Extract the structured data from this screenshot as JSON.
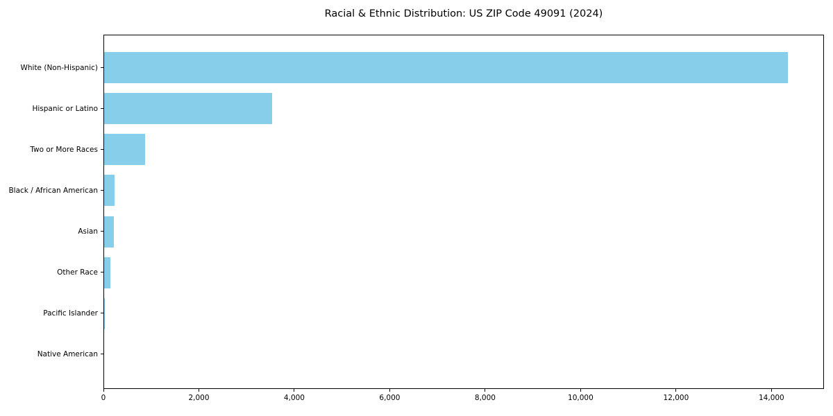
{
  "chart_data": {
    "type": "bar",
    "orientation": "horizontal",
    "title": "Racial & Ethnic Distribution: US ZIP Code 49091 (2024)",
    "categories": [
      "White (Non-Hispanic)",
      "Hispanic or Latino",
      "Two or More Races",
      "Black / African American",
      "Asian",
      "Other Race",
      "Pacific Islander",
      "Native American"
    ],
    "values": [
      14360,
      3530,
      855,
      220,
      200,
      135,
      15,
      0
    ],
    "bar_color": "#87CEEB",
    "background_color": "#ffffff",
    "axis_color": "#000000",
    "xlabel": "",
    "ylabel": "",
    "xlim": [
      0,
      15100
    ],
    "x_ticks": [
      0,
      2000,
      4000,
      6000,
      8000,
      10000,
      12000,
      14000
    ],
    "x_tick_labels": [
      "0",
      "2,000",
      "4,000",
      "6,000",
      "8,000",
      "10,000",
      "12,000",
      "14,000"
    ],
    "grid": false,
    "legend": null,
    "bar_category_order": "largest value at top, categories inverted down the y-axis"
  }
}
